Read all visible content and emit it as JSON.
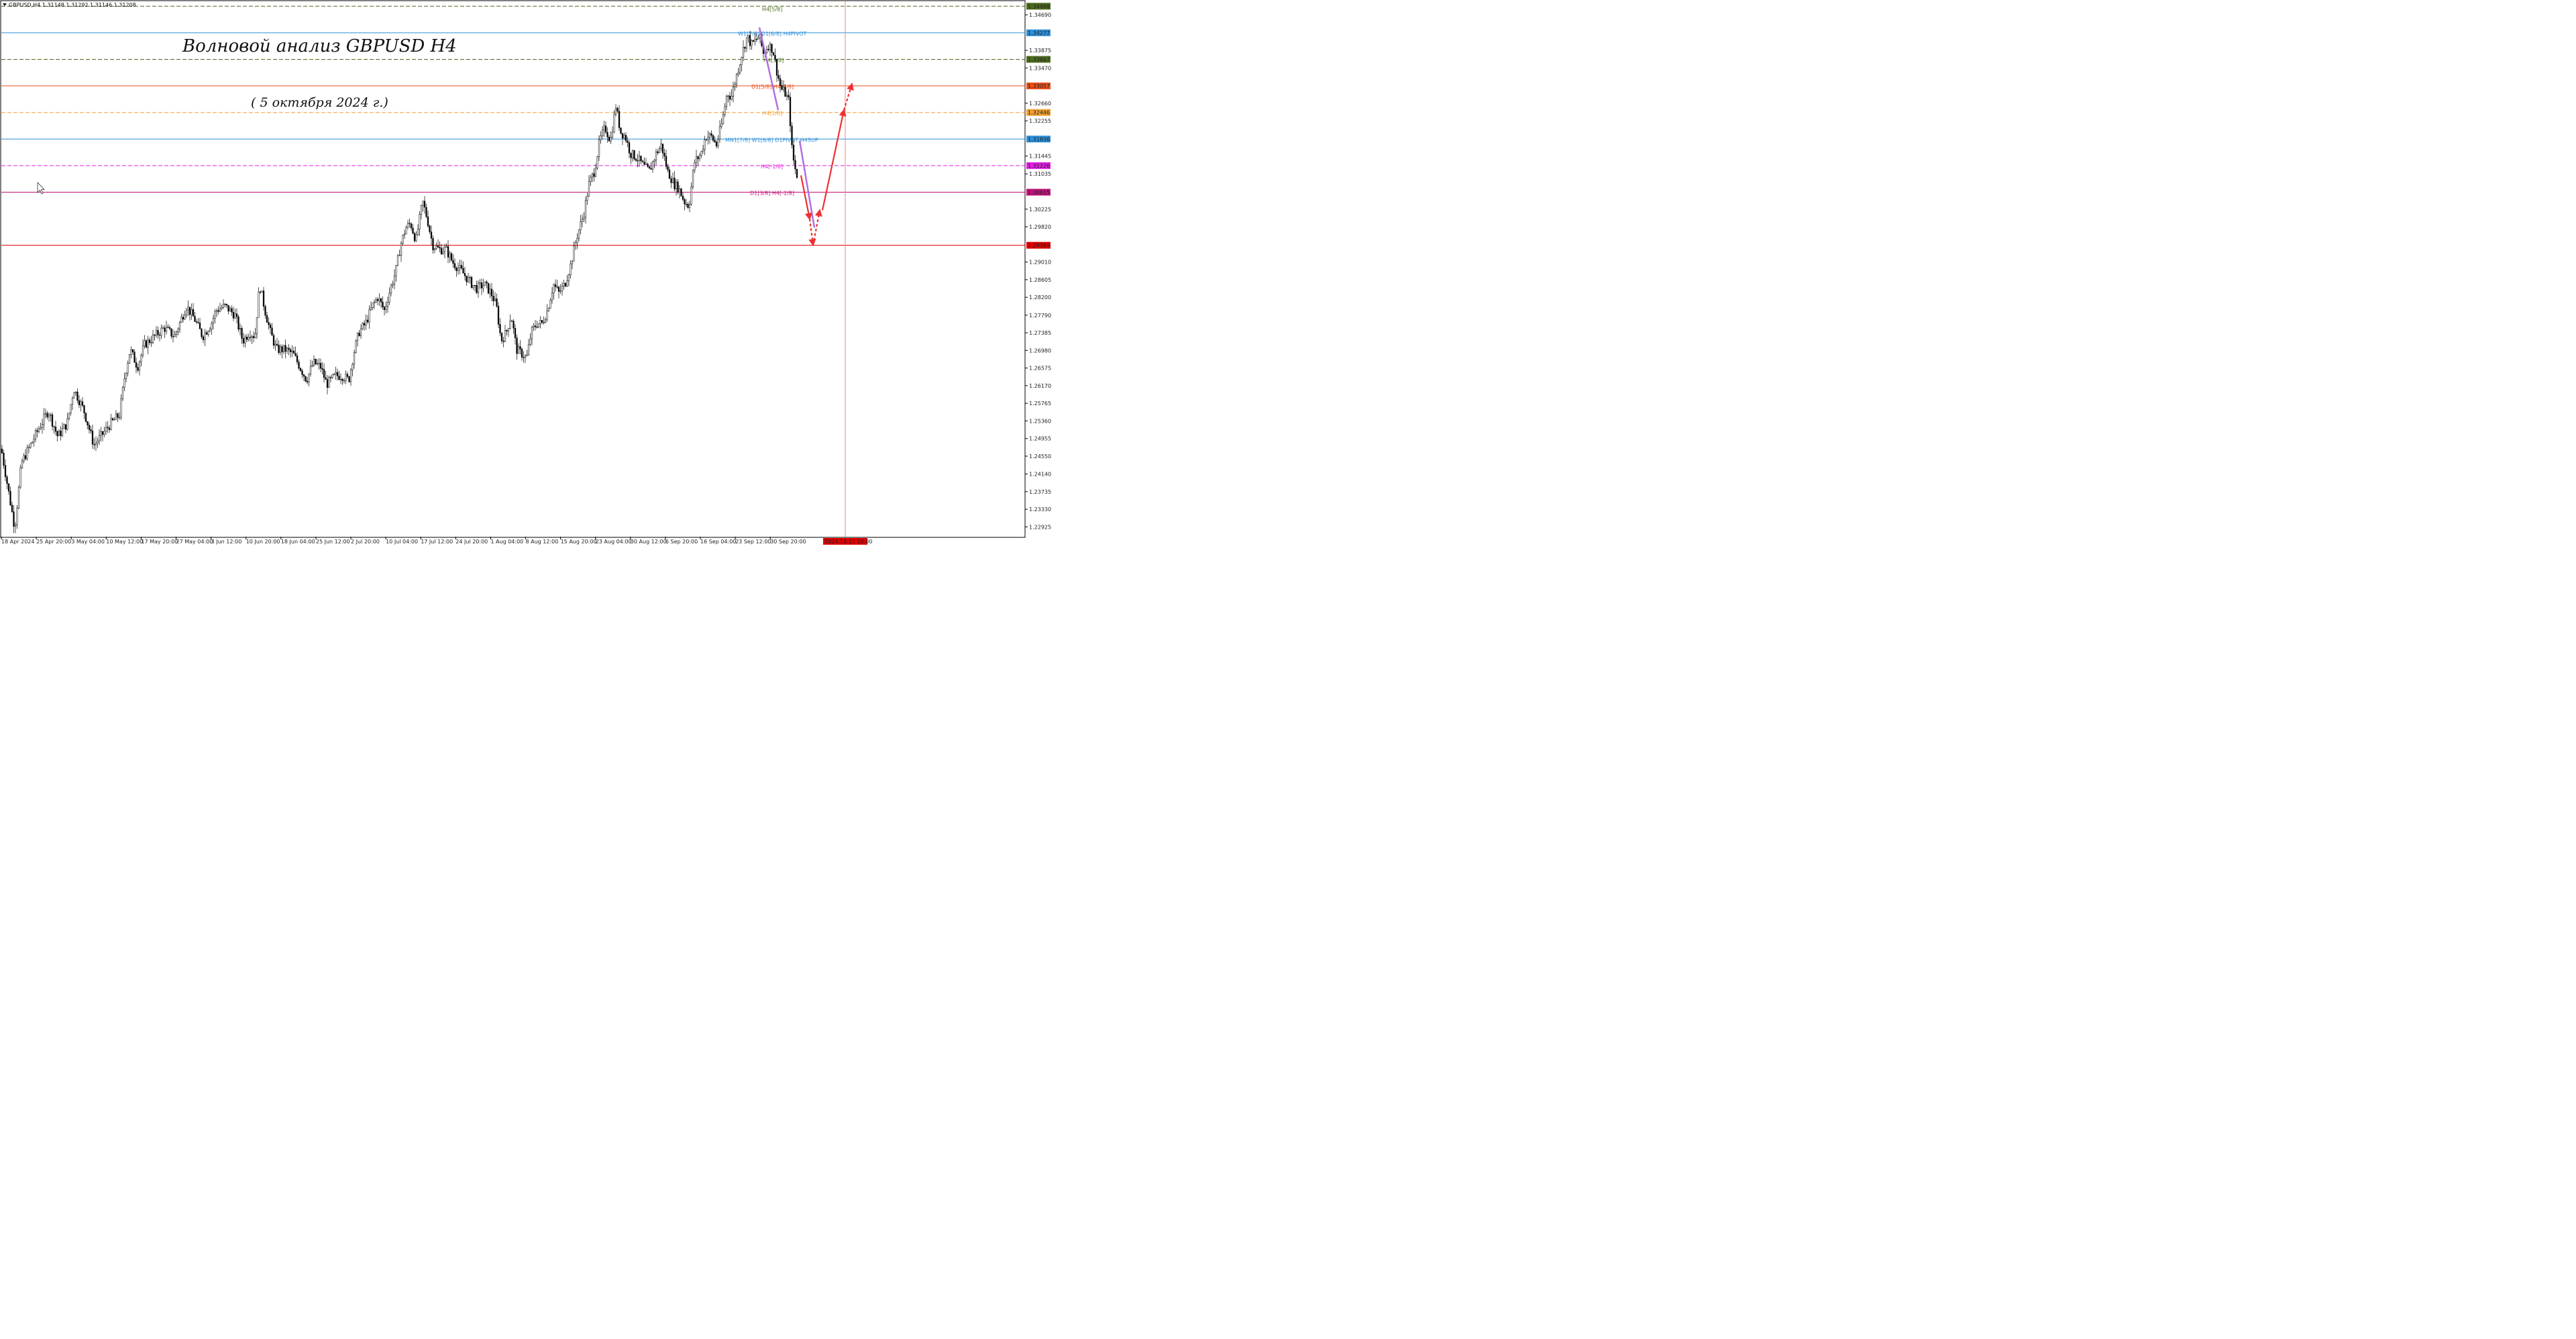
{
  "window": {
    "symbol_header": "GBPUSD,H4  1.31148 1.31292 1.31146 1.31208",
    "marker_icon": "triangle-down-icon",
    "cursor_icon": "mouse-pointer-icon"
  },
  "chart_data": {
    "type": "candlestick",
    "title": "Волновой анализ GBPUSD H4",
    "subtitle": "( 5 октября 2024 г.)",
    "ylim": [
      1.227,
      1.35
    ],
    "y_ticks": [
      "1.34690",
      "1.33875",
      "1.33470",
      "1.32660",
      "1.32255",
      "1.31445",
      "1.31035",
      "1.30225",
      "1.29820",
      "1.29010",
      "1.28605",
      "1.28200",
      "1.27790",
      "1.27385",
      "1.26980",
      "1.26575",
      "1.26170",
      "1.25765",
      "1.25360",
      "1.24955",
      "1.24550",
      "1.24140",
      "1.23735",
      "1.23330",
      "1.22925"
    ],
    "x_ticks": [
      "18 Apr 2024",
      "25 Apr 20:00",
      "3 May 04:00",
      "10 May 12:00",
      "17 May 20:00",
      "27 May 04:00",
      "3 Jun 12:00",
      "10 Jun 20:00",
      "18 Jun 04:00",
      "25 Jun 12:00",
      "2 Jul 20:00",
      "10 Jul 04:00",
      "17 Jul 12:00",
      "24 Jul 20:00",
      "1 Aug 04:00",
      "8 Aug 12:00",
      "15 Aug 20:00",
      "23 Aug 04:00",
      "30 Aug 12:00",
      "6 Sep 20:00",
      "16 Sep 04:00",
      "23 Sep 12:00",
      "30 Sep 20:00"
    ],
    "x_highlight_label": "2024.10.11 20:00",
    "price_path": [
      [
        0,
        1.249
      ],
      [
        12,
        1.238
      ],
      [
        22,
        1.229
      ],
      [
        32,
        1.244
      ],
      [
        42,
        1.247
      ],
      [
        55,
        1.251
      ],
      [
        72,
        1.256
      ],
      [
        86,
        1.25
      ],
      [
        100,
        1.253
      ],
      [
        110,
        1.261
      ],
      [
        125,
        1.256
      ],
      [
        140,
        1.248
      ],
      [
        150,
        1.25
      ],
      [
        165,
        1.253
      ],
      [
        178,
        1.255
      ],
      [
        186,
        1.264
      ],
      [
        194,
        1.27
      ],
      [
        205,
        1.266
      ],
      [
        215,
        1.271
      ],
      [
        230,
        1.273
      ],
      [
        245,
        1.275
      ],
      [
        260,
        1.273
      ],
      [
        278,
        1.28
      ],
      [
        290,
        1.277
      ],
      [
        302,
        1.273
      ],
      [
        315,
        1.276
      ],
      [
        322,
        1.279
      ],
      [
        335,
        1.28
      ],
      [
        350,
        1.278
      ],
      [
        362,
        1.272
      ],
      [
        372,
        1.274
      ],
      [
        380,
        1.273
      ],
      [
        387,
        1.285
      ],
      [
        395,
        1.279
      ],
      [
        403,
        1.274
      ],
      [
        412,
        1.27
      ],
      [
        425,
        1.27
      ],
      [
        437,
        1.269
      ],
      [
        447,
        1.266
      ],
      [
        457,
        1.263
      ],
      [
        467,
        1.267
      ],
      [
        478,
        1.266
      ],
      [
        487,
        1.262
      ],
      [
        500,
        1.264
      ],
      [
        510,
        1.264
      ],
      [
        520,
        1.263
      ],
      [
        527,
        1.269
      ],
      [
        535,
        1.274
      ],
      [
        545,
        1.276
      ],
      [
        555,
        1.28
      ],
      [
        563,
        1.282
      ],
      [
        573,
        1.279
      ],
      [
        582,
        1.284
      ],
      [
        590,
        1.288
      ],
      [
        597,
        1.294
      ],
      [
        605,
        1.298
      ],
      [
        612,
        1.299
      ],
      [
        620,
        1.295
      ],
      [
        630,
        1.304
      ],
      [
        637,
        1.3
      ],
      [
        645,
        1.294
      ],
      [
        655,
        1.293
      ],
      [
        665,
        1.293
      ],
      [
        675,
        1.29
      ],
      [
        688,
        1.288
      ],
      [
        698,
        1.286
      ],
      [
        710,
        1.284
      ],
      [
        722,
        1.285
      ],
      [
        732,
        1.283
      ],
      [
        740,
        1.28
      ],
      [
        747,
        1.272
      ],
      [
        755,
        1.274
      ],
      [
        762,
        1.278
      ],
      [
        770,
        1.27
      ],
      [
        778,
        1.269
      ],
      [
        785,
        1.268
      ],
      [
        792,
        1.274
      ],
      [
        800,
        1.276
      ],
      [
        808,
        1.276
      ],
      [
        816,
        1.279
      ],
      [
        825,
        1.285
      ],
      [
        833,
        1.283
      ],
      [
        842,
        1.285
      ],
      [
        850,
        1.289
      ],
      [
        860,
        1.296
      ],
      [
        870,
        1.301
      ],
      [
        878,
        1.308
      ],
      [
        886,
        1.311
      ],
      [
        894,
        1.318
      ],
      [
        902,
        1.321
      ],
      [
        910,
        1.318
      ],
      [
        918,
        1.326
      ],
      [
        925,
        1.32
      ],
      [
        932,
        1.319
      ],
      [
        940,
        1.315
      ],
      [
        950,
        1.314
      ],
      [
        960,
        1.312
      ],
      [
        968,
        1.311
      ],
      [
        978,
        1.315
      ],
      [
        986,
        1.317
      ],
      [
        995,
        1.311
      ],
      [
        1005,
        1.308
      ],
      [
        1012,
        1.307
      ],
      [
        1020,
        1.304
      ],
      [
        1027,
        1.303
      ],
      [
        1035,
        1.313
      ],
      [
        1045,
        1.315
      ],
      [
        1052,
        1.319
      ],
      [
        1060,
        1.319
      ],
      [
        1068,
        1.317
      ],
      [
        1076,
        1.322
      ],
      [
        1084,
        1.329
      ],
      [
        1090,
        1.328
      ],
      [
        1098,
        1.333
      ],
      [
        1106,
        1.338
      ],
      [
        1114,
        1.342
      ],
      [
        1120,
        1.34
      ],
      [
        1126,
        1.341
      ],
      [
        1132,
        1.342
      ],
      [
        1138,
        1.338
      ],
      [
        1145,
        1.34
      ],
      [
        1152,
        1.339
      ],
      [
        1158,
        1.334
      ],
      [
        1164,
        1.33
      ],
      [
        1170,
        1.329
      ],
      [
        1176,
        1.327
      ],
      [
        1181,
        1.315
      ],
      [
        1186,
        1.311
      ],
      [
        1190,
        1.309
      ]
    ],
    "levels": [
      {
        "value": 1.34888,
        "label": "1.34888",
        "color": "#4e6b1f",
        "style": "dashed",
        "tag": "H4[5/8]"
      },
      {
        "value": 1.34277,
        "label": "1.34277",
        "color": "#2f8fd8",
        "style": "solid",
        "tag": "W1[7/8] D1[6/8] H4PIVOT"
      },
      {
        "value": 1.33667,
        "label": "1.33667",
        "color": "#4e6b1f",
        "style": "dashed",
        "tag": "H4[3/8]"
      },
      {
        "value": 1.33057,
        "label": "1.33057",
        "color": "#e8501a",
        "style": "solid",
        "tag": "D1[5/8] H4[2/8]"
      },
      {
        "value": 1.32446,
        "label": "1.32446",
        "color": "#f0a030",
        "style": "dashed",
        "tag": "H4[1/8]"
      },
      {
        "value": 1.31836,
        "label": "1.31836",
        "color": "#2f8fd8",
        "style": "solid",
        "tag": "MN1[7/8] W1[6/8] D1PIVOT H4SUP"
      },
      {
        "value": 1.31226,
        "label": "1.31226",
        "color": "#e020e0",
        "style": "dashed",
        "tag": "H4[-1/8]"
      },
      {
        "value": 1.30615,
        "label": "1.30615",
        "color": "#c0147a",
        "style": "solid",
        "tag": "D1[3/8] H4[-2/8]"
      },
      {
        "value": 1.29395,
        "label": "1.29395",
        "color": "#e00000",
        "style": "solid",
        "tag": ""
      }
    ],
    "wave_purple": [
      [
        1132,
        1.344
      ],
      [
        1160,
        1.325
      ],
      [
        1192,
        1.318
      ],
      [
        1214,
        1.298
      ]
    ],
    "forecast_solid": [
      [
        1194,
        1.31
      ],
      [
        1207,
        1.3
      ],
      [
        1212,
        1.294
      ],
      [
        1226,
        1.302
      ],
      [
        1258,
        1.325
      ]
    ],
    "forecast_dashed_1": [
      [
        1207,
        1.3
      ],
      [
        1212,
        1.294
      ]
    ],
    "forecast_dashed_2": [
      [
        1212,
        1.294
      ],
      [
        1222,
        1.302
      ]
    ],
    "forecast_dashed_3": [
      [
        1258,
        1.325
      ],
      [
        1270,
        1.331
      ]
    ],
    "highlight_time_x": 1260
  }
}
